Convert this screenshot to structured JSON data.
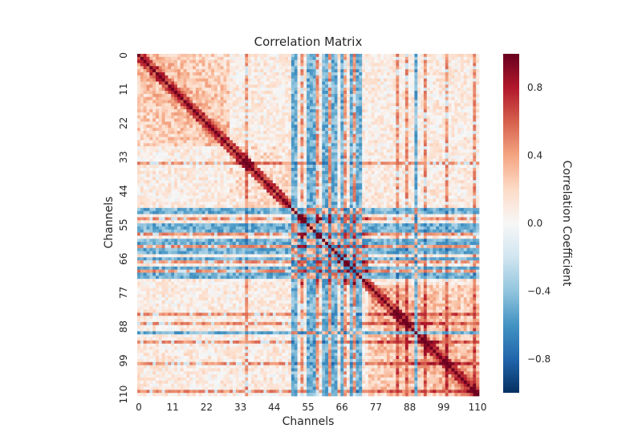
{
  "chart_data": {
    "type": "heatmap",
    "title": "Correlation Matrix",
    "xlabel": "Channels",
    "ylabel": "Channels",
    "n": 111,
    "x_ticks": [
      0,
      11,
      22,
      33,
      44,
      55,
      66,
      77,
      88,
      99,
      110
    ],
    "y_ticks": [
      0,
      11,
      22,
      33,
      44,
      55,
      66,
      77,
      88,
      99,
      110
    ],
    "colorbar": {
      "label": "Correlation Coefficient",
      "range": [
        -1,
        1
      ],
      "ticks": [
        {
          "value": 0.8,
          "label": "0.8"
        },
        {
          "value": 0.4,
          "label": "0.4"
        },
        {
          "value": 0.0,
          "label": "0.0"
        },
        {
          "value": -0.4,
          "label": "−0.4"
        },
        {
          "value": -0.8,
          "label": "−0.8"
        }
      ],
      "colormap": "RdBu_r",
      "colors": [
        "#053061",
        "#2166ac",
        "#4393c3",
        "#92c5de",
        "#d1e5f0",
        "#f7f7f7",
        "#fddbc7",
        "#f4a582",
        "#d6604d",
        "#b2182b",
        "#67001f"
      ]
    },
    "block_structure": [
      {
        "channels": [
          0,
          30
        ],
        "correlation": "positive",
        "strength": 0.35
      },
      {
        "channels": [
          30,
          50
        ],
        "correlation": "weak positive",
        "strength": 0.2
      },
      {
        "channels": [
          50,
          75
        ],
        "correlation": "positive",
        "strength": 0.5
      },
      {
        "channels": [
          75,
          111
        ],
        "correlation": "positive",
        "strength": 0.4
      }
    ],
    "negative_channels": [
      50,
      51,
      55,
      56,
      57,
      60,
      61,
      63,
      64,
      66,
      69,
      71,
      72,
      90
    ],
    "strong_channels": [
      35,
      53,
      58,
      62,
      67,
      70,
      84,
      87,
      93,
      100,
      109
    ],
    "diagonal_value": 1.0
  }
}
